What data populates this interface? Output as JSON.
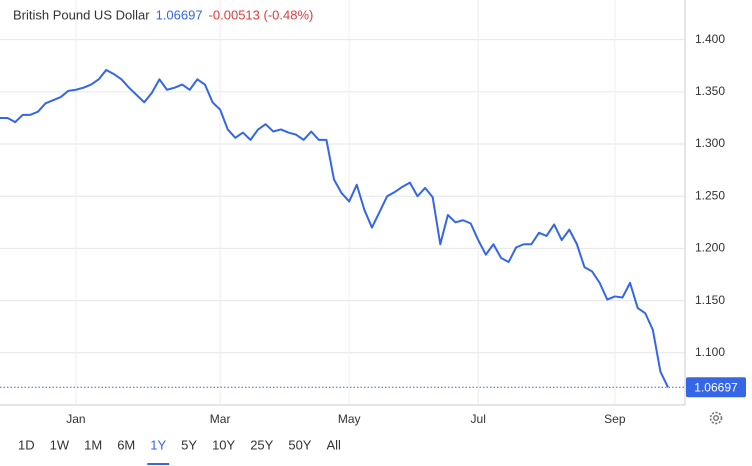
{
  "header": {
    "title": "British Pound US Dollar",
    "last": "1.06697",
    "change": "-0.00513 (-0.48%)"
  },
  "chart_data": {
    "type": "line",
    "categories": [
      null,
      null,
      null,
      null,
      null,
      null,
      null,
      null,
      null,
      null,
      "Jan",
      null,
      null,
      null,
      null,
      null,
      null,
      null,
      null,
      null,
      null,
      null,
      null,
      null,
      null,
      null,
      null,
      null,
      null,
      "Mar",
      null,
      null,
      null,
      null,
      null,
      null,
      null,
      null,
      null,
      null,
      null,
      null,
      null,
      null,
      null,
      null,
      "May",
      null,
      null,
      null,
      null,
      null,
      null,
      null,
      null,
      null,
      null,
      null,
      null,
      null,
      null,
      null,
      null,
      "Jul",
      null,
      null,
      null,
      null,
      null,
      null,
      null,
      null,
      null,
      null,
      null,
      null,
      null,
      null,
      null,
      null,
      null,
      "Sep",
      null,
      null,
      null,
      null,
      null,
      null,
      null
    ],
    "series": [
      {
        "name": "GBPUSD",
        "color": "#3466e6",
        "values": [
          1.325,
          1.325,
          1.321,
          1.328,
          1.328,
          1.331,
          1.339,
          1.342,
          1.345,
          1.351,
          1.352,
          1.354,
          1.357,
          1.362,
          1.371,
          1.367,
          1.362,
          1.354,
          1.347,
          1.34,
          1.349,
          1.362,
          1.352,
          1.354,
          1.357,
          1.352,
          1.362,
          1.357,
          1.34,
          1.333,
          1.314,
          1.306,
          1.311,
          1.304,
          1.314,
          1.319,
          1.312,
          1.314,
          1.311,
          1.309,
          1.304,
          1.312,
          1.304,
          1.304,
          1.266,
          1.253,
          1.245,
          1.261,
          1.237,
          1.22,
          1.235,
          1.25,
          1.254,
          1.259,
          1.263,
          1.25,
          1.258,
          1.249,
          1.204,
          1.232,
          1.225,
          1.227,
          1.224,
          1.208,
          1.194,
          1.204,
          1.191,
          1.187,
          1.201,
          1.204,
          1.204,
          1.215,
          1.212,
          1.223,
          1.208,
          1.218,
          1.204,
          1.182,
          1.178,
          1.167,
          1.151,
          1.154,
          1.153,
          1.167,
          1.143,
          1.138,
          1.122,
          1.082,
          1.06697
        ]
      }
    ],
    "ylim": [
      1.05,
      1.438
    ],
    "yticks": [
      {
        "value": 1.1,
        "label": "1.100"
      },
      {
        "value": 1.15,
        "label": "1.150"
      },
      {
        "value": 1.2,
        "label": "1.200"
      },
      {
        "value": 1.25,
        "label": "1.250"
      },
      {
        "value": 1.3,
        "label": "1.300"
      },
      {
        "value": 1.35,
        "label": "1.350"
      },
      {
        "value": 1.4,
        "label": "1.400"
      }
    ],
    "grid": true
  },
  "ranges": [
    "1D",
    "1W",
    "1M",
    "6M",
    "1Y",
    "5Y",
    "10Y",
    "25Y",
    "50Y",
    "All"
  ],
  "active_range": 4
}
